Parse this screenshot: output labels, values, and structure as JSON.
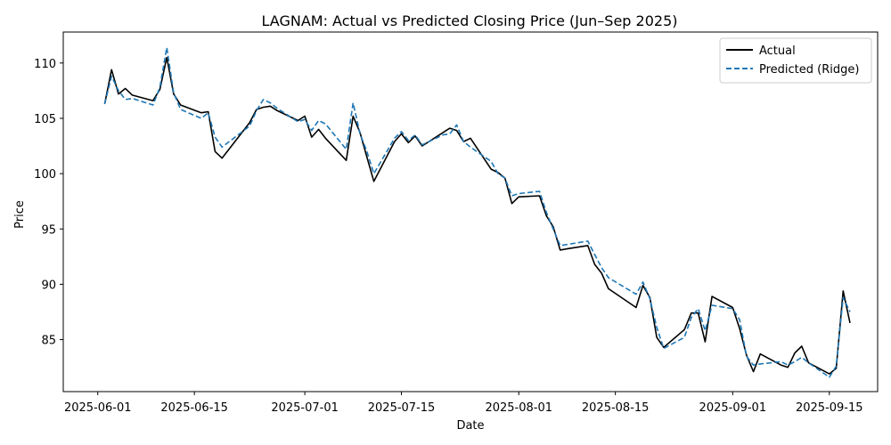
{
  "chart_data": {
    "type": "line",
    "title": "LAGNAM: Actual vs Predicted Closing Price (Jun–Sep 2025)",
    "xlabel": "Date",
    "ylabel": "Price",
    "x_ticks": [
      "2025-06-01",
      "2025-06-15",
      "2025-07-01",
      "2025-07-15",
      "2025-08-01",
      "2025-08-15",
      "2025-09-01",
      "2025-09-15"
    ],
    "y_ticks": [
      85,
      90,
      95,
      100,
      105,
      110
    ],
    "xlim": [
      "2025-05-27",
      "2025-09-22"
    ],
    "ylim": [
      80.3,
      112.8
    ],
    "grid": false,
    "legend_position": "top-right",
    "x": [
      "2025-06-02",
      "2025-06-03",
      "2025-06-04",
      "2025-06-05",
      "2025-06-06",
      "2025-06-09",
      "2025-06-10",
      "2025-06-11",
      "2025-06-12",
      "2025-06-13",
      "2025-06-16",
      "2025-06-17",
      "2025-06-18",
      "2025-06-19",
      "2025-06-23",
      "2025-06-24",
      "2025-06-25",
      "2025-06-26",
      "2025-06-27",
      "2025-06-30",
      "2025-07-01",
      "2025-07-02",
      "2025-07-03",
      "2025-07-04",
      "2025-07-07",
      "2025-07-08",
      "2025-07-09",
      "2025-07-10",
      "2025-07-11",
      "2025-07-14",
      "2025-07-15",
      "2025-07-16",
      "2025-07-17",
      "2025-07-18",
      "2025-07-21",
      "2025-07-22",
      "2025-07-23",
      "2025-07-24",
      "2025-07-25",
      "2025-07-28",
      "2025-07-29",
      "2025-07-30",
      "2025-07-31",
      "2025-08-01",
      "2025-08-04",
      "2025-08-05",
      "2025-08-06",
      "2025-08-07",
      "2025-08-08",
      "2025-08-11",
      "2025-08-12",
      "2025-08-13",
      "2025-08-14",
      "2025-08-18",
      "2025-08-19",
      "2025-08-20",
      "2025-08-21",
      "2025-08-22",
      "2025-08-25",
      "2025-08-26",
      "2025-08-27",
      "2025-08-28",
      "2025-08-29",
      "2025-09-01",
      "2025-09-02",
      "2025-09-03",
      "2025-09-04",
      "2025-09-05",
      "2025-09-08",
      "2025-09-09",
      "2025-09-10",
      "2025-09-11",
      "2025-09-12",
      "2025-09-15",
      "2025-09-16",
      "2025-09-17",
      "2025-09-18"
    ],
    "series": [
      {
        "name": "Actual",
        "color": "#000000",
        "dash": "solid",
        "values": [
          106.3,
          109.4,
          107.2,
          107.7,
          107.1,
          106.6,
          107.6,
          110.5,
          107.2,
          106.2,
          105.5,
          105.6,
          102.0,
          101.4,
          104.6,
          105.8,
          106.0,
          106.1,
          105.7,
          104.8,
          105.2,
          103.3,
          104.0,
          103.2,
          101.2,
          105.2,
          103.7,
          101.5,
          99.3,
          102.9,
          103.6,
          102.8,
          103.4,
          102.5,
          103.7,
          104.1,
          103.9,
          102.9,
          103.2,
          100.4,
          100.1,
          99.6,
          97.3,
          97.9,
          98.0,
          96.2,
          95.2,
          93.1,
          93.2,
          93.5,
          91.8,
          91.0,
          89.6,
          87.9,
          89.9,
          88.8,
          85.2,
          84.3,
          85.9,
          87.4,
          87.4,
          84.8,
          88.9,
          87.9,
          86.0,
          83.6,
          82.1,
          83.7,
          82.7,
          82.5,
          83.8,
          84.4,
          82.9,
          81.9,
          82.4,
          89.4,
          86.5
        ]
      },
      {
        "name": "Predicted (Ridge)",
        "color": "#1f77b4",
        "dash": "dashed",
        "values": [
          106.3,
          108.8,
          107.5,
          106.7,
          106.8,
          106.2,
          107.8,
          111.4,
          107.3,
          105.8,
          105.0,
          105.5,
          103.3,
          102.4,
          104.3,
          105.7,
          106.7,
          106.4,
          105.9,
          104.7,
          104.9,
          103.9,
          104.8,
          104.5,
          102.2,
          106.4,
          103.6,
          102.0,
          100.0,
          103.2,
          103.8,
          103.0,
          103.5,
          102.6,
          103.5,
          103.6,
          104.4,
          102.9,
          102.4,
          101.1,
          100.0,
          99.6,
          98.0,
          98.2,
          98.4,
          96.5,
          95.0,
          93.5,
          93.6,
          93.9,
          92.7,
          91.5,
          90.6,
          89.1,
          90.2,
          88.7,
          86.1,
          84.2,
          85.2,
          87.0,
          87.8,
          85.8,
          88.1,
          87.8,
          86.8,
          83.5,
          82.7,
          82.8,
          83.0,
          82.7,
          83.0,
          83.4,
          82.9,
          81.6,
          82.6,
          88.8,
          87.5
        ]
      }
    ]
  }
}
